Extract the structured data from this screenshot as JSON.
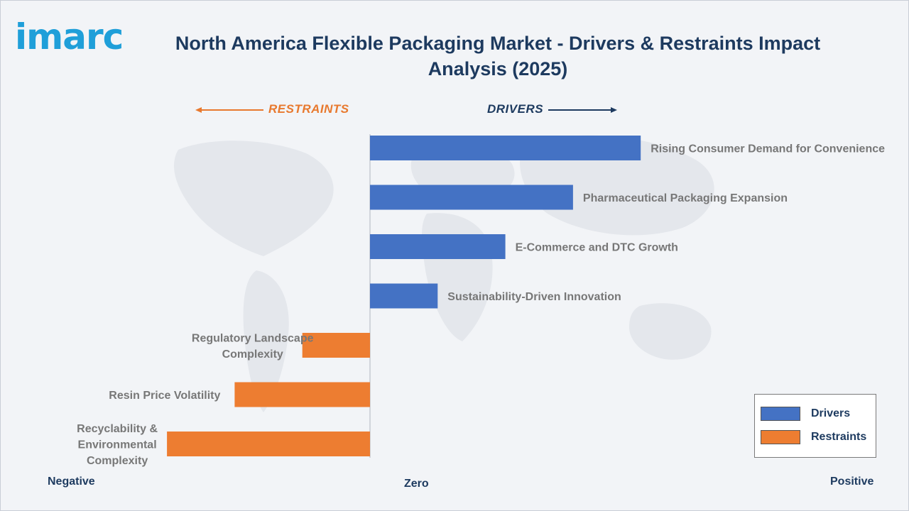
{
  "brand": {
    "logo_text": "imarc"
  },
  "labels": {
    "restraints": "RESTRAINTS",
    "drivers": "DRIVERS",
    "negative": "Negative",
    "zero": "Zero",
    "positive": "Positive"
  },
  "colors": {
    "drivers": "#4472c4",
    "restraints": "#ed7d31",
    "title": "#1d3a5f",
    "logo": "#1f9fd9"
  },
  "chart_data": {
    "type": "bar",
    "orientation": "horizontal",
    "title": "North America Flexible Packaging Market - Drivers & Restraints Impact Analysis (2025)",
    "xlabel": "",
    "ylabel": "",
    "xlim": [
      -3,
      4
    ],
    "grid": false,
    "legend_position": "bottom-right",
    "categories": [
      "Rising Consumer Demand for Convenience",
      "Pharmaceutical Packaging Expansion",
      "E-Commerce and DTC Growth",
      "Sustainability-Driven Innovation",
      "Regulatory Landscape Complexity",
      "Resin Price Volatility",
      "Recyclability & Environmental Complexity"
    ],
    "values": [
      4,
      3,
      2,
      1,
      -1,
      -2,
      -3
    ],
    "series": [
      {
        "name": "Drivers",
        "color": "#4472c4"
      },
      {
        "name": "Restraints",
        "color": "#ed7d31"
      }
    ]
  }
}
